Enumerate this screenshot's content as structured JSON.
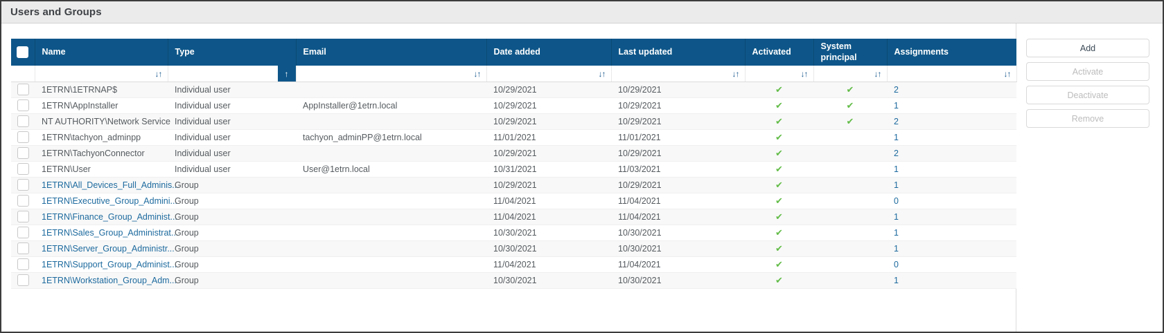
{
  "title": "Users and Groups",
  "colors": {
    "header_bg": "#0e5689",
    "check_green": "#62bc47",
    "link_blue": "#1d6a9e",
    "titlebar_bg": "#ebebeb"
  },
  "icons": {
    "sort_both": "↓↑",
    "sort_asc": "↑",
    "check_icon": "✔"
  },
  "table": {
    "columns": [
      {
        "key": "name",
        "label": "Name"
      },
      {
        "key": "type",
        "label": "Type"
      },
      {
        "key": "email",
        "label": "Email"
      },
      {
        "key": "date_added",
        "label": "Date added"
      },
      {
        "key": "last_updated",
        "label": "Last updated"
      },
      {
        "key": "activated",
        "label": "Activated"
      },
      {
        "key": "system_principal",
        "label": "System principal"
      },
      {
        "key": "assignments",
        "label": "Assignments"
      }
    ],
    "sorted_column": "type",
    "rows": [
      {
        "name": "1ETRN\\1ETRNAP$",
        "name_is_link": false,
        "type": "Individual user",
        "email": "",
        "date_added": "10/29/2021",
        "last_updated": "10/29/2021",
        "activated": true,
        "system_principal": true,
        "assignments": "2"
      },
      {
        "name": "1ETRN\\AppInstaller",
        "name_is_link": false,
        "type": "Individual user",
        "email": "AppInstaller@1etrn.local",
        "date_added": "10/29/2021",
        "last_updated": "10/29/2021",
        "activated": true,
        "system_principal": true,
        "assignments": "1"
      },
      {
        "name": "NT AUTHORITY\\Network Service",
        "name_is_link": false,
        "type": "Individual user",
        "email": "",
        "date_added": "10/29/2021",
        "last_updated": "10/29/2021",
        "activated": true,
        "system_principal": true,
        "assignments": "2"
      },
      {
        "name": "1ETRN\\tachyon_adminpp",
        "name_is_link": false,
        "type": "Individual user",
        "email": "tachyon_adminPP@1etrn.local",
        "date_added": "11/01/2021",
        "last_updated": "11/01/2021",
        "activated": true,
        "system_principal": false,
        "assignments": "1"
      },
      {
        "name": "1ETRN\\TachyonConnector",
        "name_is_link": false,
        "type": "Individual user",
        "email": "",
        "date_added": "10/29/2021",
        "last_updated": "10/29/2021",
        "activated": true,
        "system_principal": false,
        "assignments": "2"
      },
      {
        "name": "1ETRN\\User",
        "name_is_link": false,
        "type": "Individual user",
        "email": "User@1etrn.local",
        "date_added": "10/31/2021",
        "last_updated": "11/03/2021",
        "activated": true,
        "system_principal": false,
        "assignments": "1"
      },
      {
        "name": "1ETRN\\All_Devices_Full_Adminis...",
        "name_is_link": true,
        "type": "Group",
        "email": "",
        "date_added": "10/29/2021",
        "last_updated": "10/29/2021",
        "activated": true,
        "system_principal": false,
        "assignments": "1"
      },
      {
        "name": "1ETRN\\Executive_Group_Admini...",
        "name_is_link": true,
        "type": "Group",
        "email": "",
        "date_added": "11/04/2021",
        "last_updated": "11/04/2021",
        "activated": true,
        "system_principal": false,
        "assignments": "0"
      },
      {
        "name": "1ETRN\\Finance_Group_Administ...",
        "name_is_link": true,
        "type": "Group",
        "email": "",
        "date_added": "11/04/2021",
        "last_updated": "11/04/2021",
        "activated": true,
        "system_principal": false,
        "assignments": "1"
      },
      {
        "name": "1ETRN\\Sales_Group_Administrat...",
        "name_is_link": true,
        "type": "Group",
        "email": "",
        "date_added": "10/30/2021",
        "last_updated": "10/30/2021",
        "activated": true,
        "system_principal": false,
        "assignments": "1"
      },
      {
        "name": "1ETRN\\Server_Group_Administr...",
        "name_is_link": true,
        "type": "Group",
        "email": "",
        "date_added": "10/30/2021",
        "last_updated": "10/30/2021",
        "activated": true,
        "system_principal": false,
        "assignments": "1"
      },
      {
        "name": "1ETRN\\Support_Group_Administ...",
        "name_is_link": true,
        "type": "Group",
        "email": "",
        "date_added": "11/04/2021",
        "last_updated": "11/04/2021",
        "activated": true,
        "system_principal": false,
        "assignments": "0"
      },
      {
        "name": "1ETRN\\Workstation_Group_Adm...",
        "name_is_link": true,
        "type": "Group",
        "email": "",
        "date_added": "10/30/2021",
        "last_updated": "10/30/2021",
        "activated": true,
        "system_principal": false,
        "assignments": "1"
      }
    ]
  },
  "actions": [
    {
      "label": "Add",
      "enabled": true
    },
    {
      "label": "Activate",
      "enabled": false
    },
    {
      "label": "Deactivate",
      "enabled": false
    },
    {
      "label": "Remove",
      "enabled": false
    }
  ]
}
